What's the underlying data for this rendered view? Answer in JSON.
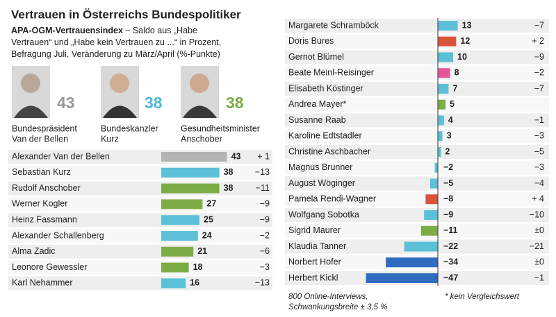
{
  "title": "Vertrauen in Österreichs Bundespolitiker",
  "subtitle_bold": "APA-OGM-Vertrauensindex",
  "subtitle": [
    " – Saldo aus „Habe",
    "Vertrauen“ und „Habe kein Vertrauen zu ...“ in Prozent,",
    "Befragung Juli, Veränderung zu März/April (%-Punkte)"
  ],
  "highlights": [
    {
      "caption": [
        "Bundespräsident",
        "Van der Bellen"
      ],
      "value": 43,
      "color": "#9a9a9a"
    },
    {
      "caption": [
        "Bundeskanzler",
        "Kurz"
      ],
      "value": 38,
      "color": "#4fb8d3"
    },
    {
      "caption": [
        "Gesundheitsminister",
        "Anschober"
      ],
      "value": 38,
      "color": "#7cad45"
    }
  ],
  "chart_data": [
    {
      "type": "bar",
      "categories": [
        "Alexander Van der Bellen",
        "Sebastian Kurz",
        "Rudolf Anschober",
        "Werner Kogler",
        "Heinz Fassmann",
        "Alexander Schallenberg",
        "Alma Zadic",
        "Leonore Gewessler",
        "Karl Nehammer"
      ],
      "values": [
        43,
        38,
        38,
        27,
        25,
        24,
        21,
        18,
        16
      ],
      "value_labels": [
        "43",
        "38",
        "38",
        "27",
        "25",
        "24",
        "21",
        "18",
        "16"
      ],
      "colors": [
        "#b4b4b4",
        "#5bc0d8",
        "#7cad45",
        "#7cad45",
        "#5bc0d8",
        "#5bc0d8",
        "#7cad45",
        "#7cad45",
        "#5bc0d8"
      ],
      "changes": [
        1,
        -13,
        -11,
        -9,
        -9,
        -2,
        -6,
        -3,
        -13
      ],
      "change_labels": [
        "+ 1",
        "−13",
        "−11",
        "−9",
        "−9",
        "−2",
        "−6",
        "−3",
        "−13"
      ]
    },
    {
      "type": "bar",
      "categories": [
        "Margarete Schramböck",
        "Doris Bures",
        "Gernot Blümel",
        "Beate Meinl-Reisinger",
        "Elisabeth Köstinger",
        "Andrea Mayer*",
        "Susanne Raab",
        "Karoline Edtstadler",
        "Christine Aschbacher",
        "Magnus Brunner",
        "August Wöginger",
        "Pamela Rendi-Wagner",
        "Wolfgang Sobotka",
        "Sigrid Maurer",
        "Klaudia Tanner",
        "Norbert Hofer",
        "Herbert Kickl"
      ],
      "values": [
        13,
        12,
        10,
        8,
        7,
        5,
        4,
        3,
        2,
        -2,
        -5,
        -8,
        -9,
        -11,
        -22,
        -34,
        -47
      ],
      "value_labels": [
        "13",
        "12",
        "10",
        "8",
        "7",
        "5",
        "4",
        "3",
        "2",
        "−2",
        "−5",
        "−8",
        "−9",
        "−11",
        "−22",
        "−34",
        "−47"
      ],
      "colors": [
        "#5bc0d8",
        "#d9533b",
        "#5bc0d8",
        "#e8559a",
        "#5bc0d8",
        "#7cad45",
        "#5bc0d8",
        "#5bc0d8",
        "#5bc0d8",
        "#5bc0d8",
        "#5bc0d8",
        "#d9533b",
        "#5bc0d8",
        "#7cad45",
        "#5bc0d8",
        "#2f6cbf",
        "#2f6cbf"
      ],
      "changes": [
        -7,
        2,
        -9,
        -2,
        -7,
        null,
        -1,
        -3,
        -5,
        -3,
        -4,
        4,
        -10,
        0,
        -21,
        0,
        -1
      ],
      "change_labels": [
        "−7",
        "+ 2",
        "−9",
        "−2",
        "−7",
        null,
        "−1",
        "−3",
        "−5",
        "−3",
        "−4",
        "+ 4",
        "−10",
        "±0",
        "−21",
        "±0",
        "−1"
      ]
    }
  ],
  "footnote": [
    "800 Online-Interviews,",
    "Schwankungsbreite ± 3,5 %"
  ],
  "footnote2": "* kein Vergleichswert"
}
